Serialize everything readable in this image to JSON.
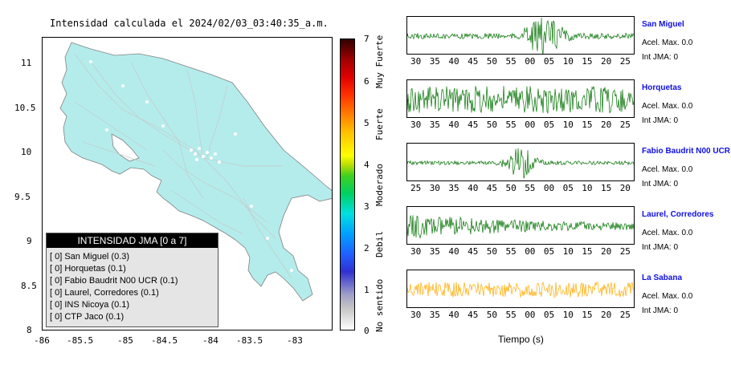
{
  "map": {
    "title": "Intensidad calculada el 2024/02/03_03:40:35_a.m.",
    "x_ticks": [
      "-86",
      "-85.5",
      "-85",
      "-84.5",
      "-84",
      "-83.5",
      "-83"
    ],
    "y_ticks": [
      "11",
      "10.5",
      "10",
      "9.5",
      "9",
      "8.5",
      "8"
    ],
    "land_color": "#b4ecec",
    "legend": {
      "header": "INTENSIDAD JMA [0 a 7]",
      "items": [
        "[ 0]  San Miguel (0.3)",
        "[ 0]  Horquetas (0.1)",
        "[ 0]  Fabio Baudrit N00 UCR (0.1)",
        "[ 0]  Laurel, Corredores (0.1)",
        "[ 0]  INS Nicoya (0.1)",
        "[ 0]  CTP Jaco (0.1)"
      ]
    }
  },
  "colorbar": {
    "ticks": [
      "7",
      "6",
      "5",
      "4",
      "3",
      "2",
      "1",
      "0"
    ],
    "labels": [
      "Muy Fuerte",
      "Fuerte",
      "Moderado",
      "Debil",
      "No sentido"
    ]
  },
  "stations": [
    {
      "name": "San Miguel",
      "acel": "Acel. Max. 0.0",
      "int": "Int JMA: 0",
      "color": "#007000",
      "ticks": [
        "30",
        "35",
        "40",
        "45",
        "50",
        "55",
        "00",
        "05",
        "10",
        "15",
        "20",
        "25"
      ]
    },
    {
      "name": "Horquetas",
      "acel": "Acel. Max. 0.0",
      "int": "Int JMA: 0",
      "color": "#007000",
      "ticks": [
        "30",
        "35",
        "40",
        "45",
        "50",
        "55",
        "00",
        "05",
        "10",
        "15",
        "20",
        "25"
      ]
    },
    {
      "name": "Fabio Baudrit N00 UCR",
      "acel": "Acel. Max. 0.0",
      "int": "Int JMA: 0",
      "color": "#007000",
      "ticks": [
        "25",
        "30",
        "35",
        "40",
        "45",
        "50",
        "55",
        "00",
        "05",
        "10",
        "15",
        "20"
      ]
    },
    {
      "name": "Laurel, Corredores",
      "acel": "Acel. Max. 0.0",
      "int": "Int JMA: 0",
      "color": "#007000",
      "ticks": [
        "30",
        "35",
        "40",
        "45",
        "50",
        "55",
        "00",
        "05",
        "10",
        "15",
        "20",
        "25"
      ]
    },
    {
      "name": "La Sabana",
      "acel": "Acel. Max. 0.0",
      "int": "Int JMA: 0",
      "color": "#ffaa00",
      "ticks": [
        "30",
        "35",
        "40",
        "45",
        "50",
        "55",
        "00",
        "05",
        "10",
        "15",
        "20",
        "25"
      ]
    }
  ],
  "x_axis_label": "Tiempo (s)"
}
